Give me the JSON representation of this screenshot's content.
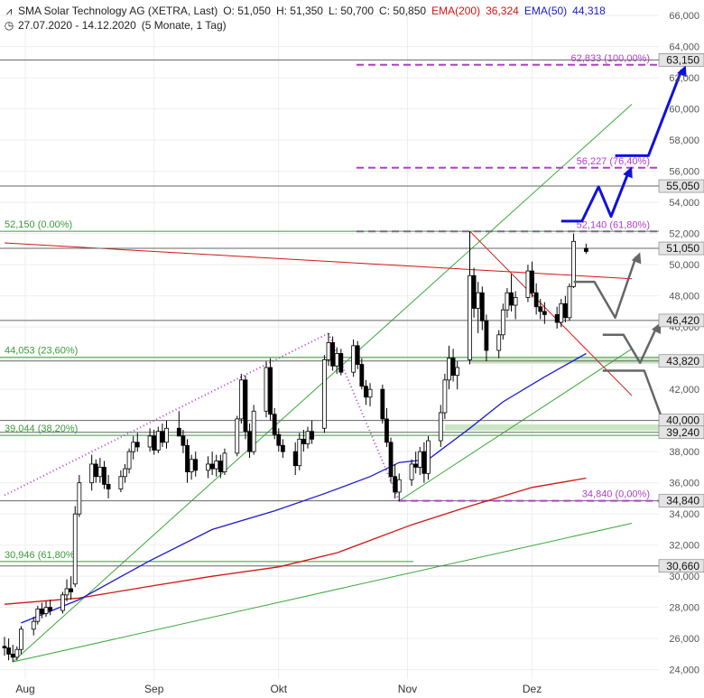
{
  "header": {
    "title": "SMA Solar Technology AG (XETRA, Last)",
    "open": "O: 51,050",
    "high": "H: 51,350",
    "low": "L: 50,700",
    "close": "C: 50,850",
    "ema200_label": "EMA(200)",
    "ema200_value": "36,324",
    "ema50_label": "EMA(50)",
    "ema50_value": "44,318",
    "date_range": "27.07.2020 - 14.12.2020",
    "period": "(5 Monate, 1 Tag)"
  },
  "chart_data": {
    "type": "candlestick",
    "y_range": [
      23400,
      66300
    ],
    "y_ticks": [
      "24,000",
      "26,000",
      "28,000",
      "30,000",
      "32,000",
      "34,000",
      "36,000",
      "38,000",
      "40,000",
      "42,000",
      "44,000",
      "46,000",
      "48,000",
      "50,000",
      "52,000",
      "54,000",
      "56,000",
      "58,000",
      "60,000",
      "62,000",
      "64,000",
      "66,000"
    ],
    "x_labels": [
      "Aug",
      "Sep",
      "Okt",
      "Nov",
      "Dez"
    ],
    "x_label_dates": [
      "2020-08-01",
      "2020-09-01",
      "2020-10-01",
      "2020-11-01",
      "2020-12-01"
    ],
    "x_range": [
      "2020-07-27",
      "2020-12-25"
    ],
    "candles": [
      {
        "d": "2020-07-27",
        "o": 25.5,
        "h": 26.1,
        "l": 24.9,
        "c": 25.4
      },
      {
        "d": "2020-07-28",
        "o": 25.4,
        "h": 26.0,
        "l": 24.6,
        "c": 25.0
      },
      {
        "d": "2020-07-29",
        "o": 25.0,
        "h": 25.6,
        "l": 24.5,
        "c": 24.8
      },
      {
        "d": "2020-07-30",
        "o": 24.8,
        "h": 25.5,
        "l": 24.6,
        "c": 25.3
      },
      {
        "d": "2020-07-31",
        "o": 25.3,
        "h": 26.8,
        "l": 25.0,
        "c": 26.6
      },
      {
        "d": "2020-08-03",
        "o": 26.6,
        "h": 27.4,
        "l": 26.2,
        "c": 27.1
      },
      {
        "d": "2020-08-04",
        "o": 27.1,
        "h": 28.1,
        "l": 26.9,
        "c": 27.9
      },
      {
        "d": "2020-08-05",
        "o": 27.9,
        "h": 28.3,
        "l": 27.3,
        "c": 27.6
      },
      {
        "d": "2020-08-06",
        "o": 27.6,
        "h": 28.4,
        "l": 27.4,
        "c": 28.0
      },
      {
        "d": "2020-08-07",
        "o": 28.0,
        "h": 28.5,
        "l": 27.5,
        "c": 27.8
      },
      {
        "d": "2020-08-10",
        "o": 27.8,
        "h": 29.0,
        "l": 27.6,
        "c": 28.8
      },
      {
        "d": "2020-08-11",
        "o": 28.8,
        "h": 29.8,
        "l": 28.4,
        "c": 29.2
      },
      {
        "d": "2020-08-12",
        "o": 29.2,
        "h": 30.0,
        "l": 28.5,
        "c": 29.0
      },
      {
        "d": "2020-08-13",
        "o": 29.5,
        "h": 34.5,
        "l": 29.3,
        "c": 34.0
      },
      {
        "d": "2020-08-14",
        "o": 34.0,
        "h": 36.5,
        "l": 33.8,
        "c": 36.0
      },
      {
        "d": "2020-08-17",
        "o": 36.0,
        "h": 37.8,
        "l": 35.5,
        "c": 37.2
      },
      {
        "d": "2020-08-18",
        "o": 37.2,
        "h": 37.5,
        "l": 36.0,
        "c": 36.4
      },
      {
        "d": "2020-08-19",
        "o": 36.4,
        "h": 37.6,
        "l": 36.0,
        "c": 37.0
      },
      {
        "d": "2020-08-20",
        "o": 37.0,
        "h": 37.4,
        "l": 35.6,
        "c": 35.9
      },
      {
        "d": "2020-08-21",
        "o": 35.9,
        "h": 36.5,
        "l": 35.0,
        "c": 35.6
      },
      {
        "d": "2020-08-24",
        "o": 35.6,
        "h": 36.8,
        "l": 35.4,
        "c": 36.4
      },
      {
        "d": "2020-08-25",
        "o": 36.4,
        "h": 37.2,
        "l": 36.0,
        "c": 36.9
      },
      {
        "d": "2020-08-26",
        "o": 36.9,
        "h": 38.2,
        "l": 36.6,
        "c": 38.0
      },
      {
        "d": "2020-08-27",
        "o": 38.0,
        "h": 39.0,
        "l": 37.5,
        "c": 38.6
      },
      {
        "d": "2020-08-28",
        "o": 38.6,
        "h": 39.2,
        "l": 38.0,
        "c": 38.3
      },
      {
        "d": "2020-08-31",
        "o": 38.3,
        "h": 39.5,
        "l": 38.0,
        "c": 39.0
      },
      {
        "d": "2020-09-01",
        "o": 39.0,
        "h": 39.4,
        "l": 37.8,
        "c": 38.1
      },
      {
        "d": "2020-09-02",
        "o": 38.1,
        "h": 39.6,
        "l": 37.9,
        "c": 39.3
      },
      {
        "d": "2020-09-03",
        "o": 39.3,
        "h": 39.8,
        "l": 38.3,
        "c": 38.6
      },
      {
        "d": "2020-09-04",
        "o": 38.6,
        "h": 40.0,
        "l": 38.2,
        "c": 39.5
      },
      {
        "d": "2020-09-07",
        "o": 39.5,
        "h": 40.6,
        "l": 39.0,
        "c": 39.0
      },
      {
        "d": "2020-09-08",
        "o": 39.0,
        "h": 39.4,
        "l": 37.9,
        "c": 38.4
      },
      {
        "d": "2020-09-09",
        "o": 38.4,
        "h": 38.8,
        "l": 36.0,
        "c": 36.7
      },
      {
        "d": "2020-09-10",
        "o": 36.7,
        "h": 37.8,
        "l": 36.2,
        "c": 37.5
      },
      {
        "d": "2020-09-11",
        "o": 37.5,
        "h": 38.0,
        "l": 36.4,
        "c": 36.8
      },
      {
        "d": "2020-09-14",
        "o": 36.8,
        "h": 37.7,
        "l": 36.3,
        "c": 37.2
      },
      {
        "d": "2020-09-15",
        "o": 37.2,
        "h": 38.0,
        "l": 36.5,
        "c": 36.9
      },
      {
        "d": "2020-09-16",
        "o": 36.9,
        "h": 37.8,
        "l": 36.4,
        "c": 37.4
      },
      {
        "d": "2020-09-17",
        "o": 37.4,
        "h": 37.8,
        "l": 36.3,
        "c": 36.7
      },
      {
        "d": "2020-09-18",
        "o": 36.7,
        "h": 38.2,
        "l": 36.5,
        "c": 37.9
      },
      {
        "d": "2020-09-21",
        "o": 37.9,
        "h": 40.3,
        "l": 37.7,
        "c": 40.1
      },
      {
        "d": "2020-09-22",
        "o": 40.1,
        "h": 43.0,
        "l": 39.8,
        "c": 42.6
      },
      {
        "d": "2020-09-23",
        "o": 42.6,
        "h": 42.9,
        "l": 38.8,
        "c": 39.3
      },
      {
        "d": "2020-09-24",
        "o": 39.3,
        "h": 39.8,
        "l": 37.6,
        "c": 38.0
      },
      {
        "d": "2020-09-25",
        "o": 38.0,
        "h": 41.0,
        "l": 37.8,
        "c": 40.6
      },
      {
        "d": "2020-09-28",
        "o": 40.6,
        "h": 43.8,
        "l": 40.2,
        "c": 43.4
      },
      {
        "d": "2020-09-29",
        "o": 43.4,
        "h": 44.0,
        "l": 40.0,
        "c": 40.4
      },
      {
        "d": "2020-09-30",
        "o": 40.4,
        "h": 40.8,
        "l": 38.8,
        "c": 39.1
      },
      {
        "d": "2020-10-01",
        "o": 39.1,
        "h": 39.5,
        "l": 38.0,
        "c": 38.4
      },
      {
        "d": "2020-10-02",
        "o": 38.4,
        "h": 38.8,
        "l": 37.6,
        "c": 38.0
      },
      {
        "d": "2020-10-05",
        "o": 38.0,
        "h": 38.6,
        "l": 36.5,
        "c": 37.1
      },
      {
        "d": "2020-10-06",
        "o": 37.1,
        "h": 39.2,
        "l": 36.8,
        "c": 38.8
      },
      {
        "d": "2020-10-07",
        "o": 38.8,
        "h": 39.4,
        "l": 38.0,
        "c": 38.5
      },
      {
        "d": "2020-10-08",
        "o": 38.5,
        "h": 39.6,
        "l": 38.2,
        "c": 39.3
      },
      {
        "d": "2020-10-09",
        "o": 39.3,
        "h": 40.0,
        "l": 38.5,
        "c": 38.8
      },
      {
        "d": "2020-10-12",
        "o": 39.5,
        "h": 44.2,
        "l": 39.2,
        "c": 43.9
      },
      {
        "d": "2020-10-13",
        "o": 43.9,
        "h": 45.6,
        "l": 43.5,
        "c": 45.0
      },
      {
        "d": "2020-10-14",
        "o": 45.0,
        "h": 45.4,
        "l": 43.2,
        "c": 43.5
      },
      {
        "d": "2020-10-15",
        "o": 43.5,
        "h": 44.7,
        "l": 43.0,
        "c": 44.3
      },
      {
        "d": "2020-10-16",
        "o": 44.3,
        "h": 44.6,
        "l": 42.9,
        "c": 43.1
      },
      {
        "d": "2020-10-19",
        "o": 43.1,
        "h": 45.2,
        "l": 42.8,
        "c": 44.8
      },
      {
        "d": "2020-10-20",
        "o": 44.8,
        "h": 45.1,
        "l": 43.3,
        "c": 43.6
      },
      {
        "d": "2020-10-21",
        "o": 43.6,
        "h": 44.0,
        "l": 42.0,
        "c": 42.2
      },
      {
        "d": "2020-10-22",
        "o": 42.2,
        "h": 42.6,
        "l": 41.0,
        "c": 41.5
      },
      {
        "d": "2020-10-23",
        "o": 41.5,
        "h": 42.4,
        "l": 40.9,
        "c": 42.0
      },
      {
        "d": "2020-10-26",
        "o": 42.0,
        "h": 42.3,
        "l": 39.8,
        "c": 40.1
      },
      {
        "d": "2020-10-27",
        "o": 40.1,
        "h": 40.8,
        "l": 38.3,
        "c": 38.6
      },
      {
        "d": "2020-10-28",
        "o": 38.6,
        "h": 38.9,
        "l": 36.0,
        "c": 36.4
      },
      {
        "d": "2020-10-29",
        "o": 36.4,
        "h": 37.2,
        "l": 35.0,
        "c": 35.4
      },
      {
        "d": "2020-10-30",
        "o": 35.4,
        "h": 36.6,
        "l": 34.8,
        "c": 36.2
      },
      {
        "d": "2020-11-02",
        "o": 36.2,
        "h": 37.5,
        "l": 35.8,
        "c": 37.2
      },
      {
        "d": "2020-11-03",
        "o": 37.2,
        "h": 38.0,
        "l": 36.6,
        "c": 37.0
      },
      {
        "d": "2020-11-04",
        "o": 37.0,
        "h": 38.3,
        "l": 36.5,
        "c": 38.0
      },
      {
        "d": "2020-11-05",
        "o": 38.0,
        "h": 38.6,
        "l": 36.0,
        "c": 36.6
      },
      {
        "d": "2020-11-06",
        "o": 36.6,
        "h": 39.0,
        "l": 36.2,
        "c": 38.7
      },
      {
        "d": "2020-11-09",
        "o": 38.7,
        "h": 41.0,
        "l": 38.3,
        "c": 40.5
      },
      {
        "d": "2020-11-10",
        "o": 40.5,
        "h": 43.0,
        "l": 40.1,
        "c": 42.6
      },
      {
        "d": "2020-11-11",
        "o": 42.6,
        "h": 44.8,
        "l": 42.0,
        "c": 44.0
      },
      {
        "d": "2020-11-12",
        "o": 44.0,
        "h": 44.6,
        "l": 42.5,
        "c": 42.9
      },
      {
        "d": "2020-11-13",
        "o": 42.9,
        "h": 43.8,
        "l": 42.0,
        "c": 43.4
      },
      {
        "d": "2020-11-16",
        "o": 43.9,
        "h": 52.15,
        "l": 43.6,
        "c": 49.3
      },
      {
        "d": "2020-11-17",
        "o": 49.3,
        "h": 49.8,
        "l": 46.6,
        "c": 47.2
      },
      {
        "d": "2020-11-18",
        "o": 47.2,
        "h": 48.9,
        "l": 45.6,
        "c": 48.2
      },
      {
        "d": "2020-11-19",
        "o": 48.2,
        "h": 48.6,
        "l": 45.8,
        "c": 46.4
      },
      {
        "d": "2020-11-20",
        "o": 46.4,
        "h": 46.8,
        "l": 43.8,
        "c": 44.5
      },
      {
        "d": "2020-11-23",
        "o": 44.5,
        "h": 45.8,
        "l": 44.0,
        "c": 45.5
      },
      {
        "d": "2020-11-24",
        "o": 45.5,
        "h": 47.5,
        "l": 45.2,
        "c": 47.1
      },
      {
        "d": "2020-11-25",
        "o": 47.1,
        "h": 48.5,
        "l": 46.6,
        "c": 48.2
      },
      {
        "d": "2020-11-26",
        "o": 48.2,
        "h": 49.4,
        "l": 47.0,
        "c": 47.4
      },
      {
        "d": "2020-11-27",
        "o": 47.4,
        "h": 48.3,
        "l": 46.5,
        "c": 47.9
      },
      {
        "d": "2020-11-30",
        "o": 47.9,
        "h": 50.0,
        "l": 47.6,
        "c": 49.6
      },
      {
        "d": "2020-12-01",
        "o": 49.6,
        "h": 50.2,
        "l": 47.9,
        "c": 48.2
      },
      {
        "d": "2020-12-02",
        "o": 48.2,
        "h": 48.8,
        "l": 46.8,
        "c": 47.3
      },
      {
        "d": "2020-12-03",
        "o": 47.3,
        "h": 47.8,
        "l": 46.5,
        "c": 47.0
      },
      {
        "d": "2020-12-04",
        "o": 47.0,
        "h": 47.6,
        "l": 46.2,
        "c": 46.8
      },
      {
        "d": "2020-12-07",
        "o": 46.8,
        "h": 47.3,
        "l": 45.9,
        "c": 46.3
      },
      {
        "d": "2020-12-08",
        "o": 46.3,
        "h": 47.8,
        "l": 46.0,
        "c": 47.5
      },
      {
        "d": "2020-12-09",
        "o": 47.5,
        "h": 48.0,
        "l": 46.3,
        "c": 46.6
      },
      {
        "d": "2020-12-10",
        "o": 46.6,
        "h": 48.8,
        "l": 46.4,
        "c": 48.6
      },
      {
        "d": "2020-12-11",
        "o": 48.6,
        "h": 52.0,
        "l": 48.5,
        "c": 51.5
      },
      {
        "d": "2020-12-14",
        "o": 51.05,
        "h": 51.35,
        "l": 50.7,
        "c": 50.85
      }
    ],
    "ema50": [
      [
        "2020-07-31",
        27.0
      ],
      [
        "2020-08-14",
        28.5
      ],
      [
        "2020-08-31",
        31.0
      ],
      [
        "2020-09-15",
        33.0
      ],
      [
        "2020-09-30",
        34.2
      ],
      [
        "2020-10-12",
        35.3
      ],
      [
        "2020-10-23",
        36.4
      ],
      [
        "2020-10-30",
        37.3
      ],
      [
        "2020-11-06",
        37.5
      ],
      [
        "2020-11-16",
        39.5
      ],
      [
        "2020-11-24",
        41.2
      ],
      [
        "2020-12-04",
        42.8
      ],
      [
        "2020-12-14",
        44.3
      ]
    ],
    "ema200": [
      [
        "2020-07-27",
        28.2
      ],
      [
        "2020-08-14",
        28.6
      ],
      [
        "2020-09-01",
        29.4
      ],
      [
        "2020-09-15",
        30.0
      ],
      [
        "2020-10-01",
        30.6
      ],
      [
        "2020-10-15",
        31.5
      ],
      [
        "2020-11-02",
        33.3
      ],
      [
        "2020-11-16",
        34.5
      ],
      [
        "2020-12-01",
        35.7
      ],
      [
        "2020-12-14",
        36.3
      ]
    ],
    "price_levels": [
      {
        "label": "63,150",
        "value": 63150
      },
      {
        "label": "55,050",
        "value": 55050
      },
      {
        "label": "51,050",
        "value": 51050
      },
      {
        "label": "46,420",
        "value": 46420
      },
      {
        "label": "43,820",
        "value": 43820
      },
      {
        "label": "40,000",
        "value": 40000
      },
      {
        "label": "39,240",
        "value": 39240
      },
      {
        "label": "34,840",
        "value": 34840
      },
      {
        "label": "30,660",
        "value": 30660
      }
    ],
    "fib_purple": [
      {
        "label": "62,833 (100,00%)",
        "value": 62833
      },
      {
        "label": "56,227 (76,40%)",
        "value": 56227
      },
      {
        "label": "52,140 (61,80%)",
        "value": 52140
      },
      {
        "label": "34,840 (0,00%)",
        "value": 34840
      }
    ],
    "fib_green": [
      {
        "label": "52,150 (0.00%)",
        "value": 52150
      },
      {
        "label": "44,053 (23,60%)",
        "value": 44053
      },
      {
        "label": "39,044 (38,20%)",
        "value": 39044
      },
      {
        "label": "30,946 (61,80%)",
        "value": 30946
      }
    ],
    "colors": {
      "candle": "#000000",
      "ema50": "#1a1ad2",
      "ema200": "#d21414",
      "fib_purple": "#b040c8",
      "fib_green": "#3a9a3a",
      "trend_green": "#3aaa3a",
      "trend_red": "#d21414",
      "grid": "#eeeeee",
      "support_zone": "#cce6c4",
      "scenario_up": "#1010dd",
      "scenario_gray": "#666666"
    }
  }
}
